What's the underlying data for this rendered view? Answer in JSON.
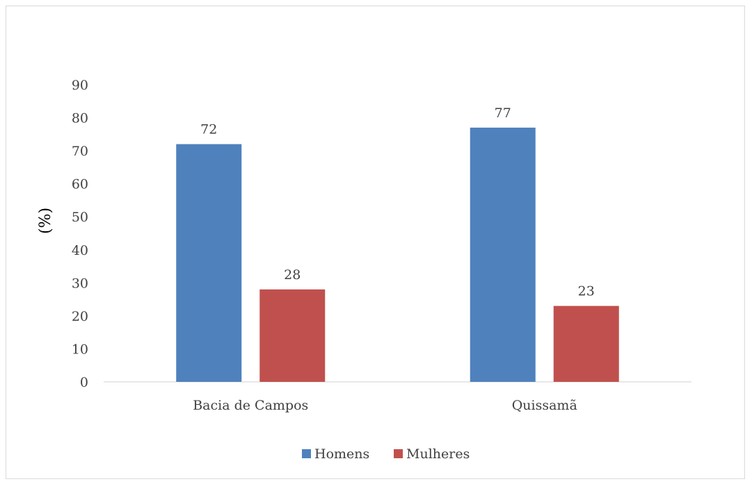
{
  "chart_data": {
    "type": "bar",
    "title": "",
    "xlabel": "",
    "ylabel": "(%)",
    "ylim": [
      0,
      90
    ],
    "yticks": [
      0,
      10,
      20,
      30,
      40,
      50,
      60,
      70,
      80,
      90
    ],
    "grid": false,
    "legend": "bottom-center",
    "categories": [
      "Bacia de Campos",
      "Quissamã"
    ],
    "series": [
      {
        "name": "Homens",
        "values": [
          72,
          77
        ],
        "color": "#4f81bd"
      },
      {
        "name": "Mulheres",
        "values": [
          28,
          23
        ],
        "color": "#c0504d"
      }
    ]
  }
}
